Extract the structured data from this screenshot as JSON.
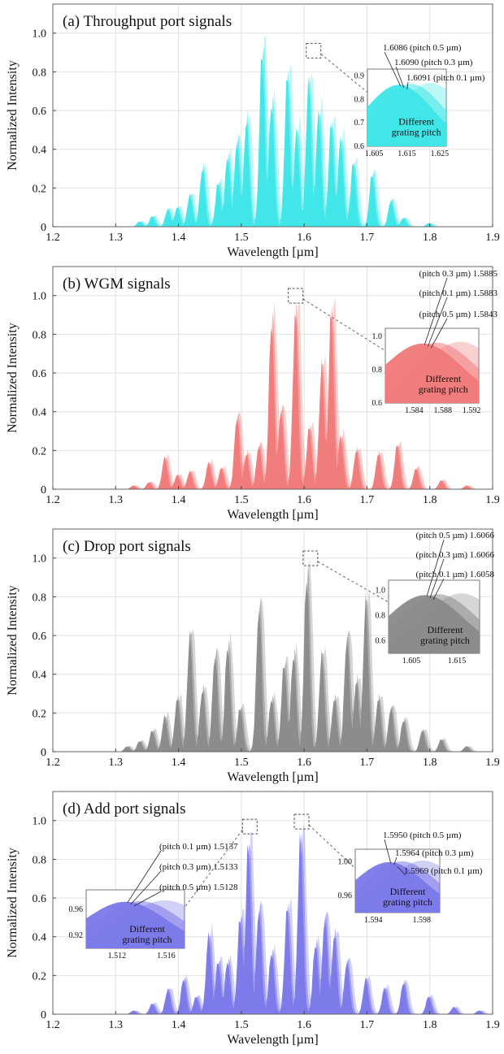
{
  "xlabel": "Wavelength [µm]",
  "ylabel": "Normalized Intensity",
  "inset_caption": [
    "Different",
    "grating pitch"
  ],
  "chart_data": [
    {
      "type": "area",
      "title": "(a) Throughput port signals",
      "xlabel": "Wavelength [µm]",
      "ylabel": "Normalized Intensity",
      "xlim": [
        1.2,
        1.9
      ],
      "ylim": [
        0,
        1.15
      ],
      "x_ticks": [
        "1.2",
        "1.3",
        "1.4",
        "1.5",
        "1.6",
        "1.7",
        "1.8",
        "1.9"
      ],
      "y_ticks": [
        "0",
        "0.2",
        "0.4",
        "0.6",
        "0.8",
        "1.0"
      ],
      "grid": true,
      "color": "#3ee6e8",
      "peaks": [
        [
          1.34,
          0.03
        ],
        [
          1.36,
          0.06
        ],
        [
          1.385,
          0.1
        ],
        [
          1.4,
          0.11
        ],
        [
          1.42,
          0.18
        ],
        [
          1.44,
          0.33
        ],
        [
          1.465,
          0.25
        ],
        [
          1.48,
          0.4
        ],
        [
          1.495,
          0.49
        ],
        [
          1.51,
          0.6
        ],
        [
          1.535,
          1.0
        ],
        [
          1.55,
          0.7
        ],
        [
          1.575,
          0.85
        ],
        [
          1.59,
          0.55
        ],
        [
          1.609,
          0.82
        ],
        [
          1.625,
          0.65
        ],
        [
          1.645,
          0.58
        ],
        [
          1.66,
          0.5
        ],
        [
          1.68,
          0.36
        ],
        [
          1.71,
          0.3
        ],
        [
          1.74,
          0.15
        ],
        [
          1.76,
          0.05
        ],
        [
          1.8,
          0.02
        ]
      ],
      "inset": {
        "xlim": [
          1.603,
          1.627
        ],
        "ylim": [
          0.6,
          0.93
        ],
        "x_ticks": [
          "1.605",
          "1.615",
          "1.625"
        ],
        "y_ticks": [
          "0.6",
          "0.7",
          "0.8",
          "0.9"
        ],
        "annotations": [
          "1.6086 (pitch 0.5 µm)",
          "1.6090 (pitch 0.3 µm)",
          "1.6091 (pitch 0.1 µm)"
        ]
      }
    },
    {
      "type": "area",
      "title": "(b) WGM signals",
      "xlabel": "Wavelength [µm]",
      "ylabel": "Normalized Intensity",
      "xlim": [
        1.2,
        1.9
      ],
      "ylim": [
        0,
        1.15
      ],
      "x_ticks": [
        "1.2",
        "1.3",
        "1.4",
        "1.5",
        "1.6",
        "1.7",
        "1.8",
        "1.9"
      ],
      "y_ticks": [
        "0",
        "0.2",
        "0.4",
        "0.6",
        "0.8",
        "1.0"
      ],
      "grid": true,
      "color": "#f07a7a",
      "peaks": [
        [
          1.33,
          0.02
        ],
        [
          1.355,
          0.04
        ],
        [
          1.38,
          0.18
        ],
        [
          1.4,
          0.08
        ],
        [
          1.42,
          0.1
        ],
        [
          1.45,
          0.15
        ],
        [
          1.47,
          0.12
        ],
        [
          1.495,
          0.41
        ],
        [
          1.51,
          0.2
        ],
        [
          1.53,
          0.25
        ],
        [
          1.55,
          0.95
        ],
        [
          1.565,
          0.45
        ],
        [
          1.588,
          1.0
        ],
        [
          1.61,
          0.35
        ],
        [
          1.63,
          0.7
        ],
        [
          1.645,
          1.0
        ],
        [
          1.66,
          0.3
        ],
        [
          1.685,
          0.22
        ],
        [
          1.72,
          0.2
        ],
        [
          1.75,
          0.25
        ],
        [
          1.78,
          0.12
        ],
        [
          1.82,
          0.05
        ],
        [
          1.86,
          0.02
        ]
      ],
      "inset": {
        "xlim": [
          1.58,
          1.593
        ],
        "ylim": [
          0.6,
          1.05
        ],
        "x_ticks": [
          "1.584",
          "1.588",
          "1.592"
        ],
        "y_ticks": [
          "0.6",
          "0.8",
          "1.0"
        ],
        "annotations": [
          "(pitch 0.3 µm) 1.5885",
          "(pitch 0.1 µm) 1.5883",
          "(pitch 0.5 µm) 1.5843"
        ]
      }
    },
    {
      "type": "area",
      "title": "(c) Drop port signals",
      "xlabel": "Wavelength [µm]",
      "ylabel": "Normalized Intensity",
      "xlim": [
        1.2,
        1.9
      ],
      "ylim": [
        0,
        1.15
      ],
      "x_ticks": [
        "1.2",
        "1.3",
        "1.4",
        "1.5",
        "1.6",
        "1.7",
        "1.8",
        "1.9"
      ],
      "y_ticks": [
        "0",
        "0.2",
        "0.4",
        "0.6",
        "0.8",
        "1.0"
      ],
      "grid": true,
      "color": "#8a8a8a",
      "peaks": [
        [
          1.32,
          0.03
        ],
        [
          1.34,
          0.06
        ],
        [
          1.36,
          0.12
        ],
        [
          1.38,
          0.2
        ],
        [
          1.4,
          0.3
        ],
        [
          1.42,
          0.66
        ],
        [
          1.44,
          0.35
        ],
        [
          1.46,
          0.55
        ],
        [
          1.48,
          0.6
        ],
        [
          1.5,
          0.25
        ],
        [
          1.53,
          0.82
        ],
        [
          1.55,
          0.3
        ],
        [
          1.57,
          0.5
        ],
        [
          1.585,
          0.55
        ],
        [
          1.606,
          1.0
        ],
        [
          1.63,
          0.55
        ],
        [
          1.65,
          0.3
        ],
        [
          1.67,
          0.65
        ],
        [
          1.685,
          0.4
        ],
        [
          1.7,
          0.85
        ],
        [
          1.72,
          0.3
        ],
        [
          1.74,
          0.25
        ],
        [
          1.76,
          0.18
        ],
        [
          1.79,
          0.12
        ],
        [
          1.82,
          0.07
        ],
        [
          1.86,
          0.03
        ]
      ],
      "inset": {
        "xlim": [
          1.6,
          1.62
        ],
        "ylim": [
          0.5,
          1.08
        ],
        "x_ticks": [
          "1.605",
          "1.615"
        ],
        "y_ticks": [
          "0.6",
          "0.8",
          "1.0"
        ],
        "annotations": [
          "(pitch 0.5 µm) 1.6066",
          "(pitch 0.3 µm) 1.6066",
          "(pitch 0.1 µm) 1.6058"
        ]
      }
    },
    {
      "type": "area",
      "title": "(d) Add port signals",
      "xlabel": "Wavelength [µm]",
      "ylabel": "Normalized Intensity",
      "xlim": [
        1.2,
        1.9
      ],
      "ylim": [
        0,
        1.15
      ],
      "x_ticks": [
        "1.2",
        "1.3",
        "1.4",
        "1.5",
        "1.6",
        "1.7",
        "1.8",
        "1.9"
      ],
      "y_ticks": [
        "0",
        "0.2",
        "0.4",
        "0.6",
        "0.8",
        "1.0"
      ],
      "grid": true,
      "color": "#7b78e8",
      "peaks": [
        [
          1.33,
          0.02
        ],
        [
          1.36,
          0.06
        ],
        [
          1.385,
          0.14
        ],
        [
          1.41,
          0.2
        ],
        [
          1.43,
          0.1
        ],
        [
          1.45,
          0.45
        ],
        [
          1.465,
          0.3
        ],
        [
          1.48,
          0.3
        ],
        [
          1.5,
          0.55
        ],
        [
          1.513,
          0.96
        ],
        [
          1.53,
          0.6
        ],
        [
          1.55,
          0.35
        ],
        [
          1.575,
          0.6
        ],
        [
          1.596,
          1.0
        ],
        [
          1.62,
          0.4
        ],
        [
          1.635,
          0.55
        ],
        [
          1.65,
          0.45
        ],
        [
          1.67,
          0.3
        ],
        [
          1.7,
          0.2
        ],
        [
          1.73,
          0.15
        ],
        [
          1.76,
          0.18
        ],
        [
          1.8,
          0.1
        ],
        [
          1.84,
          0.04
        ],
        [
          1.88,
          0.02
        ]
      ],
      "inset": {
        "xlim": [
          1.5095,
          1.5175
        ],
        "ylim": [
          0.9,
          0.99
        ],
        "x_ticks": [
          "1.512",
          "1.516"
        ],
        "y_ticks": [
          "0.92",
          "0.96"
        ],
        "annotations": [
          "(pitch 0.1 µm) 1.5137",
          "(pitch 0.3 µm) 1.5133",
          "(pitch 0.5 µm) 1.5128"
        ]
      },
      "inset2": {
        "xlim": [
          1.5925,
          1.5995
        ],
        "ylim": [
          0.94,
          1.015
        ],
        "x_ticks": [
          "1.594",
          "1.598"
        ],
        "y_ticks": [
          "0.96",
          "1.00"
        ],
        "annotations": [
          "1.5950 (pitch 0.5 µm)",
          "1.5964 (pitch 0.3 µm)",
          "1.5969 (pitch 0.1 µm)"
        ]
      }
    }
  ]
}
